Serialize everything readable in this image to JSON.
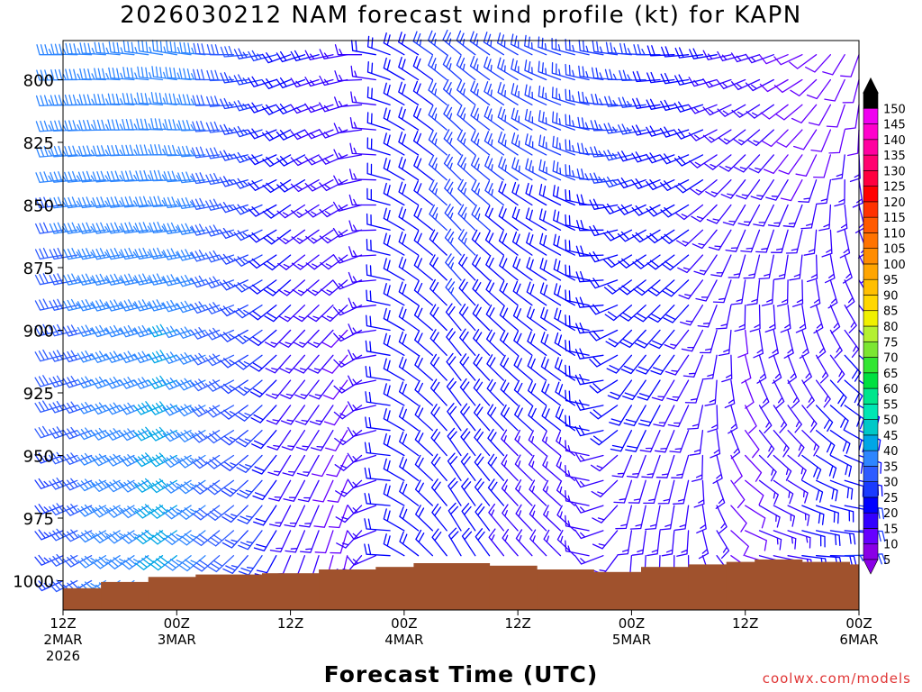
{
  "title": "2026030212 NAM forecast wind profile (kt) for KAPN",
  "xlabel": "Forecast Time (UTC)",
  "credit": "coolwx.com/models",
  "chart_data": {
    "type": "wind-barb profile",
    "title": "2026030212 NAM forecast wind profile (kt) for KAPN",
    "xlabel": "Forecast Time (UTC)",
    "ylabel": "",
    "y_ticks": [
      800,
      825,
      850,
      875,
      900,
      925,
      950,
      975,
      1000
    ],
    "ylim": [
      1010,
      785
    ],
    "y_scale": "pressure (hPa), reversed",
    "x_hours_range": [
      0,
      84
    ],
    "x_ticks": [
      {
        "hour": 0,
        "lines": [
          "12Z",
          "2MAR",
          "2026"
        ]
      },
      {
        "hour": 12,
        "lines": [
          "00Z",
          "3MAR"
        ]
      },
      {
        "hour": 24,
        "lines": [
          "12Z"
        ]
      },
      {
        "hour": 36,
        "lines": [
          "00Z",
          "4MAR"
        ]
      },
      {
        "hour": 48,
        "lines": [
          "12Z"
        ]
      },
      {
        "hour": 60,
        "lines": [
          "00Z",
          "5MAR"
        ]
      },
      {
        "hour": 72,
        "lines": [
          "12Z"
        ]
      },
      {
        "hour": 84,
        "lines": [
          "00Z",
          "6MAR"
        ]
      }
    ],
    "barb_levels_hpa": [
      790,
      800,
      810,
      820,
      830,
      840,
      850,
      860,
      870,
      880,
      890,
      900,
      910,
      920,
      930,
      940,
      950,
      960,
      970,
      980,
      990,
      1000
    ],
    "barb_hours": [
      0,
      1.5,
      3,
      4.5,
      6,
      7.5,
      9,
      10.5,
      12,
      13.5,
      15,
      16.5,
      18,
      19.5,
      21,
      22.5,
      24,
      25.5,
      27,
      28.5,
      30,
      31.5,
      33,
      34.5,
      36,
      37.5,
      39,
      40.5,
      42,
      43.5,
      45,
      46.5,
      48,
      49.5,
      51,
      52.5,
      54,
      55.5,
      57,
      58.5,
      60,
      61.5,
      63,
      64.5,
      66,
      67.5,
      69,
      70.5,
      72,
      73.5,
      75,
      76.5,
      78,
      79.5,
      81,
      82.5,
      84
    ],
    "wind_keyframes": [
      {
        "hour": 0,
        "dir_upper": 270,
        "dir_lower": 245,
        "spd_upper": 35,
        "spd_lower": 25
      },
      {
        "hour": 6,
        "dir_upper": 275,
        "dir_lower": 235,
        "spd_upper": 35,
        "spd_lower": 35
      },
      {
        "hour": 12,
        "dir_upper": 280,
        "dir_lower": 230,
        "spd_upper": 35,
        "spd_lower": 40
      },
      {
        "hour": 18,
        "dir_upper": 270,
        "dir_lower": 225,
        "spd_upper": 30,
        "spd_lower": 30
      },
      {
        "hour": 24,
        "dir_upper": 250,
        "dir_lower": 200,
        "spd_upper": 20,
        "spd_lower": 15
      },
      {
        "hour": 30,
        "dir_upper": 260,
        "dir_lower": 190,
        "spd_upper": 15,
        "spd_lower": 10
      },
      {
        "hour": 36,
        "dir_upper": 300,
        "dir_lower": 300,
        "spd_upper": 20,
        "spd_lower": 20
      },
      {
        "hour": 42,
        "dir_upper": 310,
        "dir_lower": 330,
        "spd_upper": 25,
        "spd_lower": 20
      },
      {
        "hour": 48,
        "dir_upper": 300,
        "dir_lower": 320,
        "spd_upper": 25,
        "spd_lower": 15
      },
      {
        "hour": 54,
        "dir_upper": 285,
        "dir_lower": 315,
        "spd_upper": 25,
        "spd_lower": 15
      },
      {
        "hour": 60,
        "dir_upper": 275,
        "dir_lower": 180,
        "spd_upper": 25,
        "spd_lower": 15
      },
      {
        "hour": 66,
        "dir_upper": 265,
        "dir_lower": 175,
        "spd_upper": 20,
        "spd_lower": 15
      },
      {
        "hour": 72,
        "dir_upper": 255,
        "dir_lower": 100,
        "spd_upper": 15,
        "spd_lower": 10
      },
      {
        "hour": 78,
        "dir_upper": 245,
        "dir_lower": 90,
        "spd_upper": 10,
        "spd_lower": 20
      },
      {
        "hour": 84,
        "dir_upper": 200,
        "dir_lower": 80,
        "spd_upper": 10,
        "spd_lower": 25
      }
    ],
    "surface_pressure_steps": [
      {
        "hour": 0,
        "hpa": 1003
      },
      {
        "hour": 4,
        "hpa": 1000.5
      },
      {
        "hour": 9,
        "hpa": 998.5
      },
      {
        "hour": 14,
        "hpa": 997.5
      },
      {
        "hour": 21,
        "hpa": 997
      },
      {
        "hour": 27,
        "hpa": 995.5
      },
      {
        "hour": 33,
        "hpa": 994.5
      },
      {
        "hour": 37,
        "hpa": 993
      },
      {
        "hour": 45,
        "hpa": 994
      },
      {
        "hour": 50,
        "hpa": 995.5
      },
      {
        "hour": 56,
        "hpa": 996.5
      },
      {
        "hour": 61,
        "hpa": 994.5
      },
      {
        "hour": 66,
        "hpa": 993.5
      },
      {
        "hour": 70,
        "hpa": 992.5
      },
      {
        "hour": 73,
        "hpa": 991.5
      },
      {
        "hour": 78,
        "hpa": 992.5
      },
      {
        "hour": 83,
        "hpa": 993.5
      }
    ],
    "colorbar": {
      "labels": [
        5,
        10,
        15,
        20,
        25,
        30,
        35,
        40,
        45,
        50,
        55,
        60,
        65,
        70,
        75,
        80,
        85,
        90,
        95,
        100,
        105,
        110,
        115,
        120,
        125,
        130,
        135,
        140,
        145,
        150
      ],
      "colors": [
        "#8a00e6",
        "#6600ff",
        "#3300ff",
        "#0000ff",
        "#1a3bff",
        "#2e5cff",
        "#2e86ff",
        "#00a6e6",
        "#00c8c8",
        "#00e6b4",
        "#00e68c",
        "#00e040",
        "#32e632",
        "#7ce632",
        "#b4f032",
        "#f0f000",
        "#ffd700",
        "#ffbf00",
        "#ffa500",
        "#ff8c00",
        "#ff7300",
        "#ff5a00",
        "#ff3200",
        "#ff0000",
        "#ff0040",
        "#ff0070",
        "#ff009f",
        "#ff00cc",
        "#f000f0",
        "#000000"
      ]
    },
    "terrain_color": "#a0522d",
    "grid": false,
    "legend": "colorbar right"
  }
}
